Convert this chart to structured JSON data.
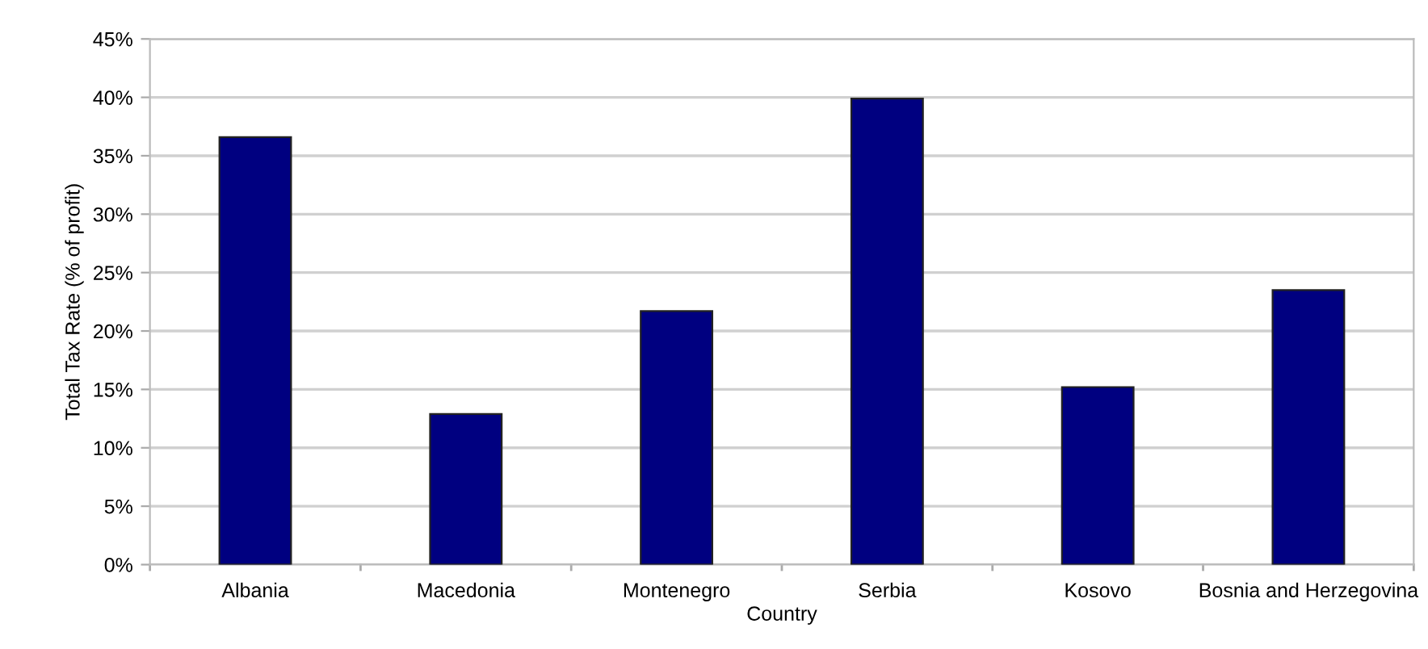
{
  "chart_data": {
    "type": "bar",
    "xlabel": "Country",
    "ylabel": "Total Tax Rate (% of profit)",
    "categories": [
      "Albania",
      "Macedonia",
      "Montenegro",
      "Serbia",
      "Kosovo",
      "Bosnia and Herzegovina"
    ],
    "values": [
      36.6,
      12.9,
      21.7,
      39.9,
      15.2,
      23.5
    ],
    "color": "#000080",
    "ylim": [
      0,
      45
    ],
    "yticks": [
      {
        "value": 0,
        "label": "0%"
      },
      {
        "value": 5,
        "label": "5%"
      },
      {
        "value": 10,
        "label": "10%"
      },
      {
        "value": 15,
        "label": "15%"
      },
      {
        "value": 20,
        "label": "20%"
      },
      {
        "value": 25,
        "label": "25%"
      },
      {
        "value": 30,
        "label": "30%"
      },
      {
        "value": 35,
        "label": "35%"
      },
      {
        "value": 40,
        "label": "40%"
      },
      {
        "value": 45,
        "label": "45%"
      }
    ],
    "grid": "y",
    "legend": false
  }
}
